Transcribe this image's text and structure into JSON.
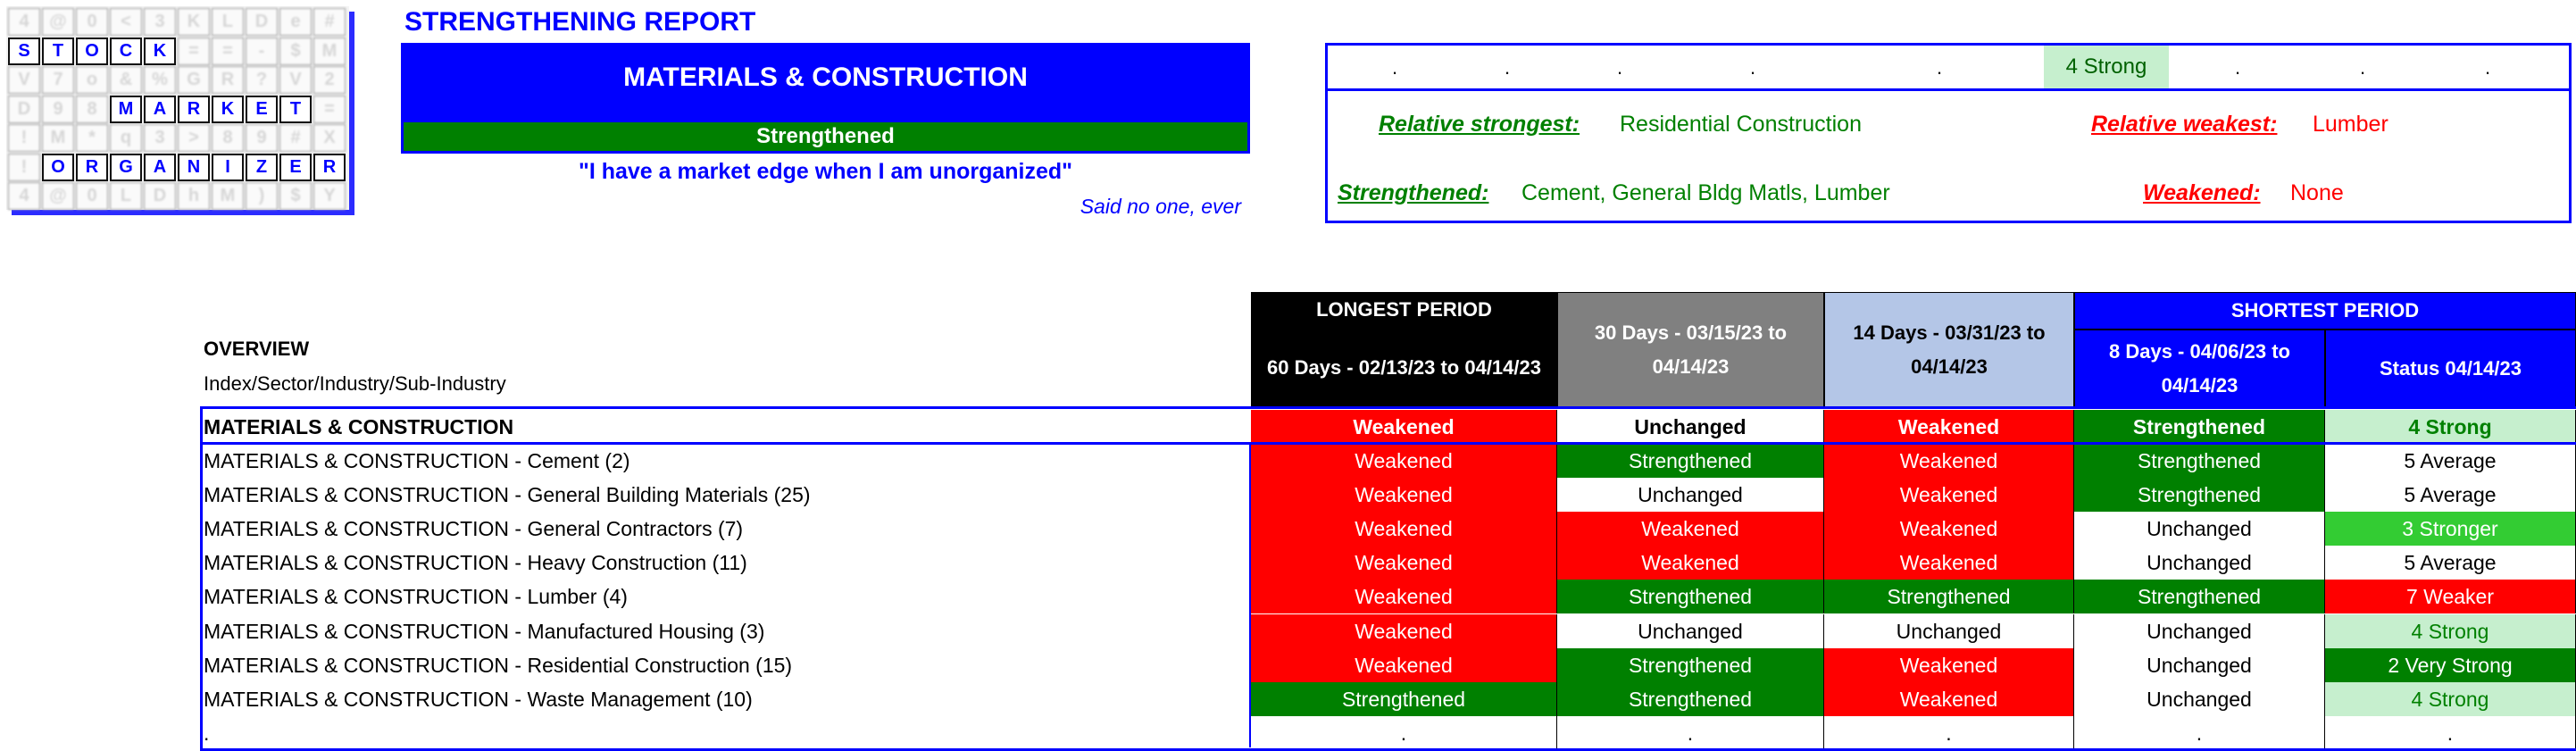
{
  "logo": {
    "grid": [
      "4@0<3KLDe#",
      "STOCK==-$M",
      "V7o&%GR?V2",
      "D98MARKET=",
      "!M*q3>89#X",
      "!ORGANIZER",
      "4@0LDhM)$Y"
    ],
    "words": [
      "STOCK",
      "MARKET",
      "ORGANIZER"
    ]
  },
  "report_title": "STRENGTHENING REPORT",
  "sector": {
    "name": "MATERIALS & CONSTRUCTION",
    "status": "Strengthened"
  },
  "quote": "\"I have a market edge when I am unorganized\"",
  "quote_attribution": "Said no one, ever",
  "summary": {
    "top_row": [
      ".",
      ".",
      ".",
      ".",
      ".",
      "4 Strong",
      ".",
      ".",
      "."
    ],
    "relative_strongest_label": "Relative strongest:",
    "relative_strongest": "Residential Construction",
    "relative_weakest_label": "Relative weakest:",
    "relative_weakest": "Lumber",
    "strengthened_label": "Strengthened:",
    "strengthened": "Cement, General Bldg Matls, Lumber",
    "weakened_label": "Weakened:",
    "weakened": "None"
  },
  "overview": {
    "title": "OVERVIEW",
    "subtitle": "Index/Sector/Industry/Sub-Industry"
  },
  "headers": {
    "longest": "LONGEST PERIOD",
    "shortest": "SHORTEST PERIOD",
    "columns": [
      "60 Days - 02/13/23 to 04/14/23",
      "30 Days - 03/15/23 to 04/14/23",
      "14 Days - 03/31/23 to 04/14/23",
      "8 Days - 04/06/23 to 04/14/23",
      "Status 04/14/23"
    ]
  },
  "colors": {
    "blue": "#0000FF",
    "header_60": "#000000",
    "header_30": "#808080",
    "header_14": "#B4C6E7",
    "Weakened": [
      "#FF0000",
      "#FFFFFF"
    ],
    "Strengthened": [
      "#008000",
      "#FFFFFF"
    ],
    "Unchanged": [
      "#FFFFFF",
      "#000000"
    ],
    "5 Average": [
      "#FFFFFF",
      "#000000"
    ],
    "4 Strong": [
      "#C6EFCE",
      "#008000"
    ],
    "3 Stronger": [
      "#33CC33",
      "#FFFFFF"
    ],
    "7 Weaker": [
      "#FF0000",
      "#FFFFFF"
    ],
    "2 Very Strong": [
      "#008000",
      "#FFFFFF"
    ],
    ".": [
      "#FFFFFF",
      "#000000"
    ]
  },
  "rows": [
    {
      "label": "MATERIALS & CONSTRUCTION",
      "cells": [
        "Weakened",
        "Unchanged",
        "Weakened",
        "Strengthened",
        "4 Strong"
      ],
      "bold": true
    },
    {
      "label": "MATERIALS & CONSTRUCTION - Cement (2)",
      "cells": [
        "Weakened",
        "Strengthened",
        "Weakened",
        "Strengthened",
        "5 Average"
      ]
    },
    {
      "label": "MATERIALS & CONSTRUCTION - General Building Materials (25)",
      "cells": [
        "Weakened",
        "Unchanged",
        "Weakened",
        "Strengthened",
        "5 Average"
      ]
    },
    {
      "label": "MATERIALS & CONSTRUCTION - General Contractors (7)",
      "cells": [
        "Weakened",
        "Weakened",
        "Weakened",
        "Unchanged",
        "3 Stronger"
      ]
    },
    {
      "label": "MATERIALS & CONSTRUCTION - Heavy Construction (11)",
      "cells": [
        "Weakened",
        "Weakened",
        "Weakened",
        "Unchanged",
        "5 Average"
      ]
    },
    {
      "label": "MATERIALS & CONSTRUCTION - Lumber (4)",
      "cells": [
        "Weakened",
        "Strengthened",
        "Strengthened",
        "Strengthened",
        "7 Weaker"
      ]
    },
    {
      "label": "MATERIALS & CONSTRUCTION - Manufactured Housing (3)",
      "cells": [
        "Weakened",
        "Unchanged",
        "Unchanged",
        "Unchanged",
        "4 Strong"
      ]
    },
    {
      "label": "MATERIALS & CONSTRUCTION - Residential Construction (15)",
      "cells": [
        "Weakened",
        "Strengthened",
        "Weakened",
        "Unchanged",
        "2 Very Strong"
      ]
    },
    {
      "label": "MATERIALS & CONSTRUCTION - Waste Management (10)",
      "cells": [
        "Strengthened",
        "Strengthened",
        "Weakened",
        "Unchanged",
        "4 Strong"
      ]
    },
    {
      "label": ".",
      "cells": [
        ".",
        ".",
        ".",
        ".",
        "."
      ]
    }
  ]
}
